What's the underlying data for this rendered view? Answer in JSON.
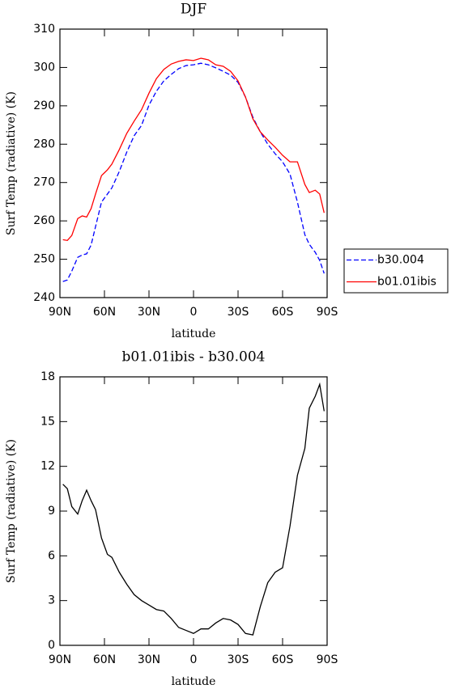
{
  "chart_data": [
    {
      "type": "line",
      "title": "DJF",
      "x_label": "latitude",
      "y_label": "Surf Temp (radiative) (K)",
      "x": [
        88,
        85,
        82,
        78,
        75,
        72,
        69,
        66,
        62,
        58,
        55,
        50,
        45,
        40,
        35,
        30,
        25,
        20,
        15,
        10,
        5,
        0,
        -5,
        -10,
        -15,
        -20,
        -25,
        -30,
        -35,
        -40,
        -45,
        -50,
        -55,
        -60,
        -65,
        -70,
        -75,
        -78,
        -82,
        -85,
        -88
      ],
      "series": [
        {
          "name": "b30.004",
          "color": "#0000ff",
          "dash": true,
          "values": [
            244.2,
            244.6,
            246.9,
            250.5,
            251.1,
            251.4,
            253.7,
            258.5,
            264.9,
            267,
            268.6,
            272.9,
            277.9,
            282.2,
            284.9,
            290.2,
            293.8,
            296.5,
            298.2,
            299.7,
            300.5,
            300.7,
            301.1,
            300.7,
            299.9,
            299,
            298,
            296.1,
            292.3,
            287,
            283.2,
            280,
            277.5,
            275.4,
            272.2,
            264.9,
            256.4,
            253.9,
            251.8,
            249.7,
            246.3
          ]
        },
        {
          "name": "b01.01ibis",
          "color": "#ff0000",
          "dash": false,
          "values": [
            255.1,
            254.9,
            256.2,
            260.6,
            261.3,
            261,
            263.2,
            267,
            271.8,
            273.3,
            274.8,
            278.6,
            282.8,
            286,
            289,
            293.3,
            297.1,
            299.5,
            300.9,
            301.6,
            302,
            301.8,
            302.4,
            302,
            300.7,
            300.3,
            299,
            296.5,
            292.3,
            286.6,
            283.2,
            281.1,
            279.2,
            277.1,
            275.4,
            275.4,
            269.5,
            267.4,
            268,
            267,
            262.1
          ]
        }
      ],
      "xlim": [
        90,
        -90
      ],
      "ylim": [
        240,
        310
      ],
      "xticks": [
        {
          "value": 90,
          "label": "90N"
        },
        {
          "value": 60,
          "label": "60N"
        },
        {
          "value": 30,
          "label": "30N"
        },
        {
          "value": 0,
          "label": "0"
        },
        {
          "value": -30,
          "label": "30S"
        },
        {
          "value": -60,
          "label": "60S"
        },
        {
          "value": -90,
          "label": "90S"
        }
      ],
      "yticks": [
        240,
        250,
        260,
        270,
        280,
        290,
        300,
        310
      ],
      "legend": "right"
    },
    {
      "type": "line",
      "title": "b01.01ibis - b30.004",
      "x_label": "latitude",
      "y_label": "Surf Temp (radiative) (K)",
      "x": [
        88,
        85,
        82,
        78,
        75,
        72,
        69,
        66,
        62,
        58,
        55,
        50,
        45,
        40,
        35,
        30,
        25,
        20,
        15,
        10,
        5,
        0,
        -5,
        -10,
        -15,
        -20,
        -25,
        -30,
        -35,
        -40,
        -45,
        -50,
        -55,
        -60,
        -65,
        -70,
        -75,
        -78,
        -82,
        -85,
        -88
      ],
      "series": [
        {
          "color": "#000000",
          "dash": false,
          "values": [
            10.8,
            10.5,
            9.3,
            8.8,
            9.7,
            10.4,
            9.7,
            9.1,
            7.2,
            6.1,
            5.9,
            4.9,
            4.1,
            3.4,
            3.0,
            2.7,
            2.4,
            2.3,
            1.8,
            1.2,
            1.0,
            0.8,
            1.1,
            1.1,
            1.5,
            1.8,
            1.7,
            1.4,
            0.8,
            0.7,
            2.6,
            4.2,
            4.9,
            5.2,
            8.0,
            11.4,
            13.2,
            15.9,
            16.7,
            17.5,
            15.7
          ]
        }
      ],
      "xlim": [
        90,
        -90
      ],
      "ylim": [
        0,
        18
      ],
      "xticks": [
        {
          "value": 90,
          "label": "90N"
        },
        {
          "value": 60,
          "label": "60N"
        },
        {
          "value": 30,
          "label": "30N"
        },
        {
          "value": 0,
          "label": "0"
        },
        {
          "value": -30,
          "label": "30S"
        },
        {
          "value": -60,
          "label": "60S"
        },
        {
          "value": -90,
          "label": "90S"
        }
      ],
      "yticks": [
        0,
        3,
        6,
        9,
        12,
        15,
        18
      ]
    }
  ]
}
